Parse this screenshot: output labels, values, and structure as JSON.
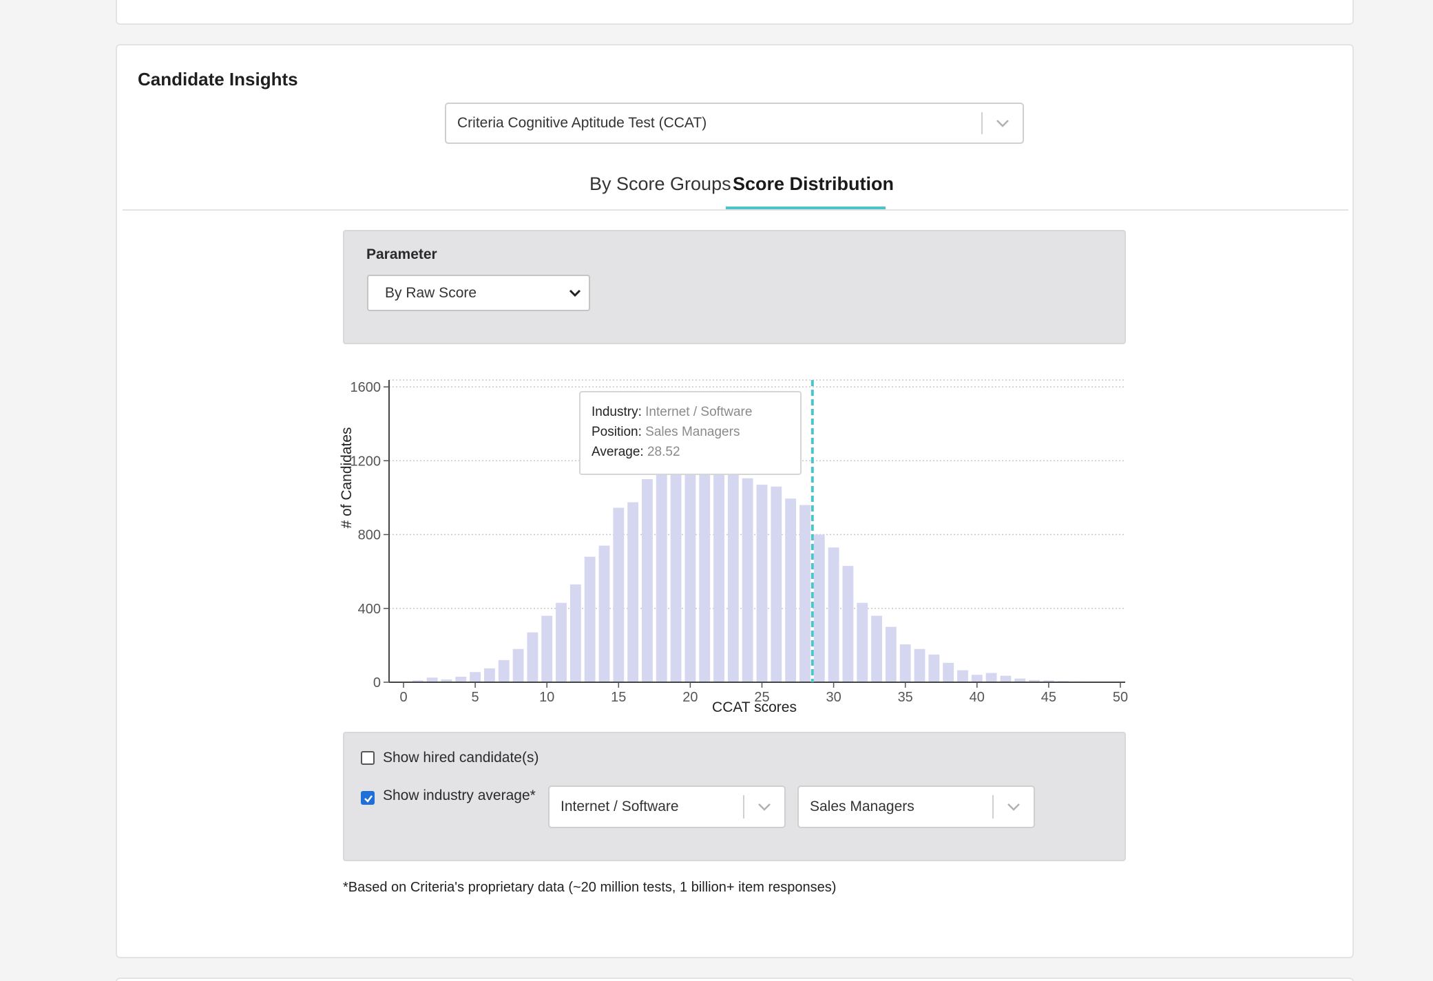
{
  "section": {
    "title": "Candidate Insights"
  },
  "test_select": {
    "value": "Criteria Cognitive Aptitude Test (CCAT)",
    "icon": "chevron-down-icon"
  },
  "tabs": [
    {
      "label": "By Score Groups",
      "active": false
    },
    {
      "label": "Score Distribution",
      "active": true
    }
  ],
  "parameter": {
    "label": "Parameter",
    "value": "By Raw Score",
    "icon": "chevron-down-icon"
  },
  "tooltip": {
    "industry_label": "Industry:",
    "industry_value": "Internet / Software",
    "position_label": "Position:",
    "position_value": "Sales Managers",
    "average_label": "Average:",
    "average_value": "28.52"
  },
  "options": {
    "show_hired_label": "Show hired candidate(s)",
    "show_hired_checked": false,
    "show_industry_label": "Show industry average*",
    "show_industry_checked": true,
    "industry_value": "Internet / Software",
    "position_value": "Sales Managers"
  },
  "footnote": "*Based on Criteria's proprietary data (~20 million tests, 1 billion+ item responses)",
  "colors": {
    "accent": "#4fc3c9",
    "bar": "#d4d7ef",
    "checkbox": "#1f6fd8",
    "panel": "#e3e3e6"
  },
  "chart_data": {
    "type": "bar",
    "xlabel": "CCAT scores",
    "ylabel": "# of Candidates",
    "xlim": [
      0,
      50
    ],
    "ylim": [
      0,
      1600
    ],
    "xticks": [
      0,
      5,
      10,
      15,
      20,
      25,
      30,
      35,
      40,
      45,
      50
    ],
    "yticks": [
      0,
      400,
      800,
      1200,
      1600
    ],
    "grid": true,
    "average_line": 28.52,
    "series": [
      {
        "x": [
          1,
          2,
          3,
          4,
          5,
          6,
          7,
          8,
          9,
          10,
          11,
          12,
          13,
          14,
          15,
          16,
          17,
          18,
          19,
          20,
          21,
          22,
          23,
          24,
          25,
          26,
          27,
          28,
          29,
          30,
          31,
          32,
          33,
          34,
          35,
          36,
          37,
          38,
          39,
          40,
          41,
          42,
          43,
          44,
          45,
          46,
          47,
          48,
          49
        ],
        "values": [
          10,
          25,
          15,
          30,
          55,
          75,
          120,
          180,
          270,
          360,
          430,
          530,
          680,
          740,
          945,
          975,
          1100,
          1140,
          1170,
          1185,
          1185,
          1175,
          1150,
          1105,
          1070,
          1060,
          995,
          960,
          800,
          730,
          630,
          430,
          360,
          300,
          205,
          180,
          150,
          105,
          65,
          40,
          50,
          35,
          20,
          12,
          10,
          6,
          4,
          3,
          2
        ]
      }
    ]
  }
}
